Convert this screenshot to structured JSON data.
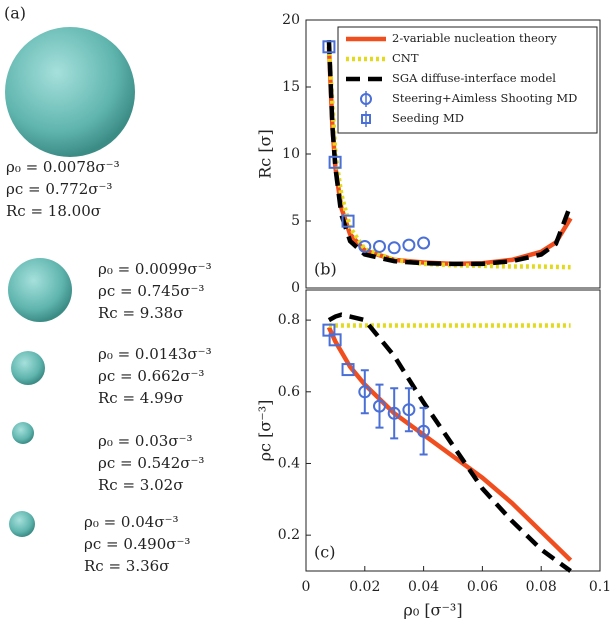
{
  "panel_label": "(a)",
  "clusters": [
    {
      "lines": [
        "ρ₀ = 0.0078σ⁻³",
        "ρc = 0.772σ⁻³",
        "Rc = 18.00σ"
      ]
    },
    {
      "lines": [
        "ρ₀ = 0.0099σ⁻³",
        "ρc = 0.745σ⁻³",
        "Rc = 9.38σ"
      ]
    },
    {
      "lines": [
        "ρ₀ = 0.0143σ⁻³",
        "ρc = 0.662σ⁻³",
        "Rc = 4.99σ"
      ]
    },
    {
      "lines": [
        "ρ₀ = 0.03σ⁻³",
        "ρc = 0.542σ⁻³",
        "Rc = 3.02σ"
      ]
    },
    {
      "lines": [
        "ρ₀ = 0.04σ⁻³",
        "ρc = 0.490σ⁻³",
        "Rc = 3.36σ"
      ]
    }
  ],
  "chart_data": [
    {
      "type": "line",
      "annotation": "(b)",
      "ylabel": "Rc [σ]",
      "legend": "upper right",
      "xlim": [
        0,
        0.1
      ],
      "ylim": [
        0,
        20
      ],
      "yticks": [
        0,
        5,
        10,
        15,
        20
      ],
      "series": [
        {
          "name": "2-variable nucleation theory",
          "color": "#f04e1e",
          "style": "line",
          "x": [
            0.0078,
            0.009,
            0.01,
            0.012,
            0.015,
            0.02,
            0.03,
            0.04,
            0.05,
            0.06,
            0.07,
            0.08,
            0.085,
            0.09
          ],
          "values": [
            18,
            12,
            9,
            6,
            4,
            2.8,
            2.1,
            1.9,
            1.8,
            1.85,
            2.1,
            2.7,
            3.4,
            5.2
          ]
        },
        {
          "name": "CNT",
          "color": "#e3da1e",
          "style": "dotted",
          "x": [
            0.0078,
            0.01,
            0.012,
            0.015,
            0.02,
            0.03,
            0.04,
            0.05,
            0.06,
            0.07,
            0.08,
            0.09
          ],
          "values": [
            18,
            10,
            7,
            4.5,
            2.9,
            2.1,
            1.8,
            1.7,
            1.65,
            1.6,
            1.6,
            1.55
          ]
        },
        {
          "name": "SGA diffuse-interface model",
          "color": "#000000",
          "style": "dashed",
          "x": [
            0.0078,
            0.009,
            0.01,
            0.012,
            0.015,
            0.02,
            0.03,
            0.04,
            0.05,
            0.06,
            0.07,
            0.08,
            0.085,
            0.09
          ],
          "values": [
            18.5,
            12,
            9,
            5.5,
            3.5,
            2.5,
            2.0,
            1.85,
            1.8,
            1.8,
            2.0,
            2.5,
            3.3,
            6.2
          ]
        },
        {
          "name": "Steering+Aimless Shooting MD",
          "color": "#4a6fd6",
          "style": "circle",
          "x": [
            0.02,
            0.025,
            0.03,
            0.035,
            0.04
          ],
          "values": [
            3.1,
            3.1,
            3.0,
            3.2,
            3.36
          ]
        },
        {
          "name": "Seeding MD",
          "color": "#4a6fd6",
          "style": "square",
          "x": [
            0.0078,
            0.0099,
            0.0143
          ],
          "values": [
            18.0,
            9.38,
            4.99
          ]
        }
      ]
    },
    {
      "type": "line",
      "annotation": "(c)",
      "ylabel": "ρc [σ⁻³]",
      "xlabel": "ρ₀ [σ⁻³]",
      "xlim": [
        0,
        0.1
      ],
      "xticks": [
        0,
        0.02,
        0.04,
        0.06,
        0.08,
        0.1
      ],
      "ylim": [
        0.1,
        0.884
      ],
      "yticks": [
        0.2,
        0.4,
        0.6,
        0.8
      ],
      "series": [
        {
          "color": "#f04e1e",
          "style": "line",
          "x": [
            0.0078,
            0.01,
            0.015,
            0.02,
            0.03,
            0.04,
            0.05,
            0.06,
            0.07,
            0.08,
            0.09
          ],
          "values": [
            0.78,
            0.74,
            0.67,
            0.62,
            0.54,
            0.48,
            0.42,
            0.36,
            0.29,
            0.21,
            0.13
          ]
        },
        {
          "color": "#e3da1e",
          "style": "dotted",
          "x": [
            0.0078,
            0.09
          ],
          "values": [
            0.785,
            0.785
          ]
        },
        {
          "color": "#000000",
          "style": "dashed",
          "x": [
            0.0078,
            0.01,
            0.012,
            0.015,
            0.02,
            0.03,
            0.04,
            0.05,
            0.06,
            0.07,
            0.08,
            0.09
          ],
          "values": [
            0.8,
            0.81,
            0.815,
            0.81,
            0.8,
            0.7,
            0.57,
            0.45,
            0.33,
            0.24,
            0.16,
            0.1
          ]
        },
        {
          "color": "#4a6fd6",
          "style": "circle",
          "x": [
            0.02,
            0.025,
            0.03,
            0.035,
            0.04
          ],
          "values": [
            0.6,
            0.56,
            0.54,
            0.55,
            0.49
          ],
          "errors": [
            0.06,
            0.06,
            0.07,
            0.06,
            0.065
          ]
        },
        {
          "color": "#4a6fd6",
          "style": "square",
          "x": [
            0.0078,
            0.0099,
            0.0143
          ],
          "values": [
            0.772,
            0.745,
            0.662
          ]
        }
      ]
    }
  ]
}
